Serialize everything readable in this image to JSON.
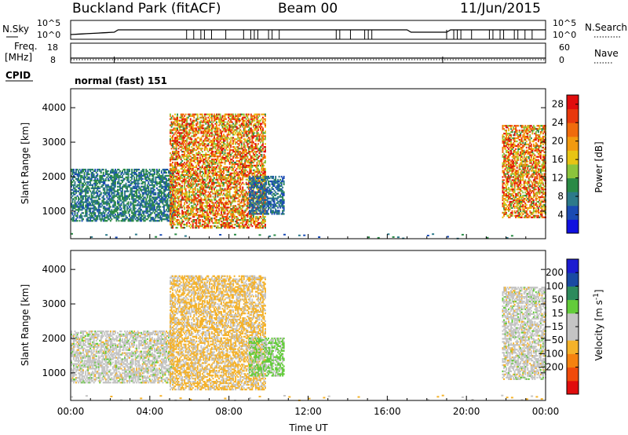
{
  "header": {
    "station": "Buckland Park (fitACF)",
    "beam": "Beam 00",
    "date": "11/Jun/2015"
  },
  "status_panel": {
    "nsky_label": "N.Sky",
    "nsky_ticks": [
      "10^5",
      "10^0"
    ],
    "nsearch_label": "N.Search",
    "nsearch_ticks": [
      "10^5",
      "10^0"
    ],
    "freq_label": "Freq.",
    "freq_unit": "[MHz]",
    "freq_ticks": [
      "18",
      "8"
    ],
    "nave_label": "Nave",
    "nave_ticks": [
      "60",
      "0"
    ],
    "cpid_label": "CPID",
    "cpid_text": "normal (fast) 151"
  },
  "colors": {
    "power_scale": [
      "#1010e0",
      "#1a4bb3",
      "#2d7a8a",
      "#2a8a45",
      "#8cc43c",
      "#e8c414",
      "#f29a0f",
      "#f06b0c",
      "#e8380c",
      "#e00d0d"
    ],
    "velocity_scale": [
      "#e00d0d",
      "#f04a0a",
      "#f5820f",
      "#f5b22a",
      "#c4c4c4",
      "#c4c4c4",
      "#63cc3a",
      "#2d8a5c",
      "#1a4aa3",
      "#1c1cd0"
    ]
  },
  "chart_data": [
    {
      "type": "heatmap",
      "quantity": "Power",
      "ylabel": "Slant Range [km]",
      "y_ticks": [
        1000,
        2000,
        3000,
        4000
      ],
      "ylim": [
        200,
        4550
      ],
      "x_ticks": [
        "00:00",
        "04:00",
        "08:00",
        "12:00",
        "16:00",
        "20:00",
        "00:00"
      ],
      "xlim_hours": [
        0,
        24
      ],
      "colorbar": {
        "label": "Power [dB]",
        "tick_values": [
          4,
          8,
          12,
          16,
          20,
          24,
          28
        ],
        "range": [
          0,
          30
        ]
      },
      "echo_regions": [
        {
          "t_start": 0.0,
          "t_end": 5.2,
          "range_min": 700,
          "range_max": 2200,
          "peak_db": 12
        },
        {
          "t_start": 5.0,
          "t_end": 9.8,
          "range_min": 500,
          "range_max": 3800,
          "peak_db": 30
        },
        {
          "t_start": 9.0,
          "t_end": 10.8,
          "range_min": 900,
          "range_max": 2000,
          "peak_db": 10
        },
        {
          "t_start": 21.8,
          "t_end": 24.0,
          "range_min": 800,
          "range_max": 3500,
          "peak_db": 30
        }
      ]
    },
    {
      "type": "heatmap",
      "quantity": "Velocity",
      "ylabel": "Slant Range [km]",
      "xlabel": "Time UT",
      "y_ticks": [
        1000,
        2000,
        3000,
        4000
      ],
      "ylim": [
        200,
        4550
      ],
      "x_ticks": [
        "00:00",
        "04:00",
        "08:00",
        "12:00",
        "16:00",
        "20:00",
        "00:00"
      ],
      "xlim_hours": [
        0,
        24
      ],
      "colorbar": {
        "label": "Velocity [m s",
        "label_sup": "-1",
        "label_end": "]",
        "tick_labels": [
          "200",
          "100",
          "50",
          "15",
          "−15",
          "−50",
          "−100",
          "−200"
        ],
        "tick_values": [
          200,
          100,
          50,
          15,
          -15,
          -50,
          -100,
          -200
        ]
      },
      "echo_regions": [
        {
          "t_start": 0.0,
          "t_end": 5.2,
          "range_min": 700,
          "range_max": 2200,
          "velocity": 0
        },
        {
          "t_start": 5.0,
          "t_end": 9.8,
          "range_min": 500,
          "range_max": 3800,
          "velocity": -50
        },
        {
          "t_start": 9.0,
          "t_end": 10.8,
          "range_min": 900,
          "range_max": 2000,
          "velocity": 15
        },
        {
          "t_start": 21.8,
          "t_end": 24.0,
          "range_min": 800,
          "range_max": 3500,
          "velocity": 0
        }
      ]
    }
  ]
}
